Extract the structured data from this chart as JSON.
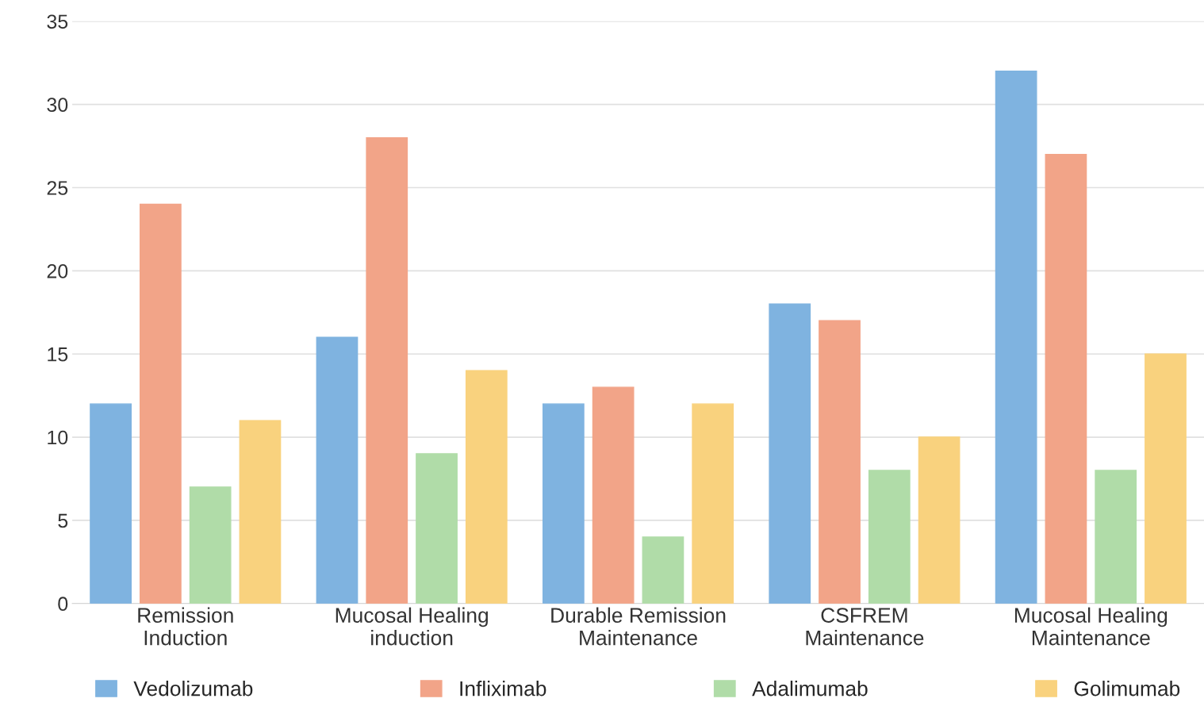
{
  "chart_data": {
    "type": "bar",
    "categories": [
      "Remission\nInduction",
      "Mucosal Healing\ninduction",
      "Durable Remission\nMaintenance",
      "CSFREM\nMaintenance",
      "Mucosal Healing\nMaintenance"
    ],
    "series": [
      {
        "name": "Vedolizumab",
        "color": "#7fb3e0",
        "values": [
          12,
          16,
          12,
          18,
          32
        ]
      },
      {
        "name": "Infliximab",
        "color": "#f2a488",
        "values": [
          24,
          28,
          13,
          17,
          27
        ]
      },
      {
        "name": "Adalimumab",
        "color": "#b0dca8",
        "values": [
          7,
          9,
          4,
          8,
          8
        ]
      },
      {
        "name": "Golimumab",
        "color": "#f9d27e",
        "values": [
          11,
          14,
          12,
          10,
          15
        ]
      }
    ],
    "ylim": [
      0,
      35
    ],
    "yticks": [
      0,
      5,
      10,
      15,
      20,
      25,
      30,
      35
    ],
    "grid": "y",
    "legend": "bottom"
  }
}
